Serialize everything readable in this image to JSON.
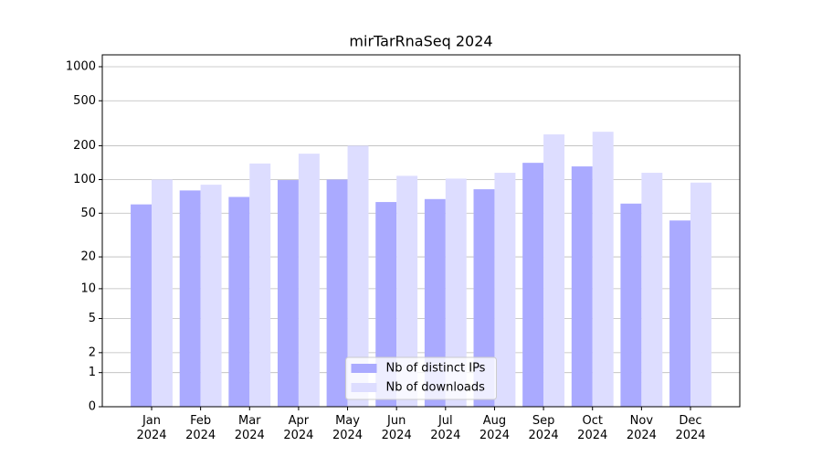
{
  "chart_data": {
    "type": "bar",
    "title": "mirTarRnaSeq 2024",
    "categories": [
      "Jan\n2024",
      "Feb\n2024",
      "Mar\n2024",
      "Apr\n2024",
      "May\n2024",
      "Jun\n2024",
      "Jul\n2024",
      "Aug\n2024",
      "Sep\n2024",
      "Oct\n2024",
      "Nov\n2024",
      "Dec\n2024"
    ],
    "series": [
      {
        "name": "Nb of distinct IPs",
        "color": "#aaaaff",
        "values": [
          60,
          80,
          70,
          99,
          100,
          63,
          67,
          82,
          141,
          131,
          61,
          43
        ]
      },
      {
        "name": "Nb of downloads",
        "color": "#ddddff",
        "values": [
          100,
          90,
          139,
          170,
          200,
          108,
          102,
          115,
          252,
          266,
          115,
          94
        ]
      }
    ],
    "yscale": "log1p",
    "ylim": [
      0,
      1273
    ],
    "yticks": [
      0,
      1,
      2,
      5,
      10,
      20,
      50,
      100,
      200,
      500,
      1000
    ],
    "grid": true,
    "legend": "lower center"
  }
}
